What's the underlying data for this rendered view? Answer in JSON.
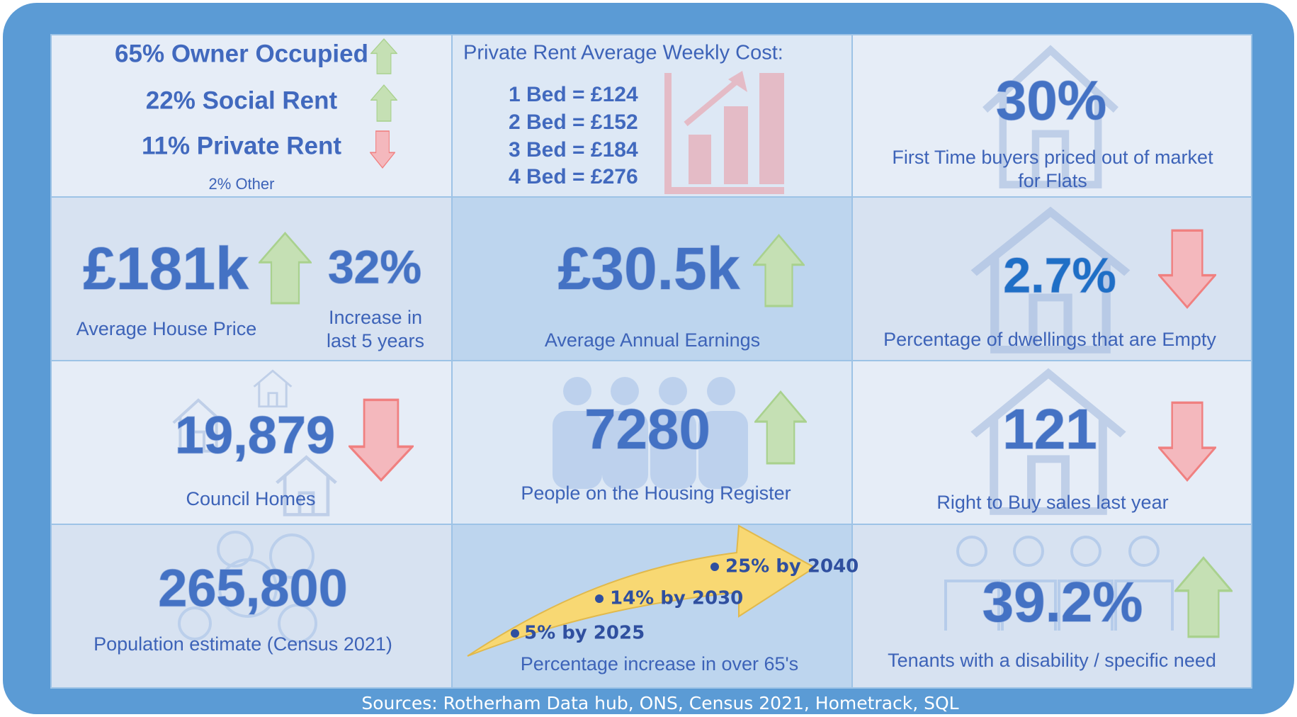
{
  "tenure": {
    "items": [
      "65% Owner Occupied",
      "22% Social Rent",
      "11% Private Rent"
    ],
    "other": "2% Other"
  },
  "rent": {
    "title": "Private Rent Average Weekly Cost:",
    "lines": [
      "1 Bed = £124",
      "2 Bed = £152",
      "3 Bed = £184",
      "4 Bed = £276"
    ]
  },
  "first_time_buyers": {
    "value": "30%",
    "caption": [
      "First Time buyers priced out of market",
      "for Flats"
    ]
  },
  "house_price": {
    "value": "£181k",
    "caption": "Average House Price",
    "increase": "32%",
    "increase_caption": [
      "Increase in",
      "last 5 years"
    ]
  },
  "earnings": {
    "value": "£30.5k",
    "caption": "Average Annual Earnings"
  },
  "empty_dwellings": {
    "value": "2.7%",
    "caption": "Percentage of dwellings that are Empty"
  },
  "council_homes": {
    "value": "19,879",
    "caption": "Council Homes"
  },
  "housing_register": {
    "value": "7280",
    "caption": "People on the Housing Register"
  },
  "right_to_buy": {
    "value": "121",
    "caption": "Right to Buy sales last year"
  },
  "population": {
    "value": "265,800",
    "caption": "Population estimate (Census 2021)"
  },
  "over_65": {
    "points": [
      "5% by 2025",
      "14% by 2030",
      "25% by 2040"
    ],
    "caption": "Percentage increase in over 65's"
  },
  "disability": {
    "value": "39.2%",
    "caption": "Tenants with a disability / specific need"
  },
  "footer": {
    "sources": "Sources: Rotherham Data hub, ONS, Census 2021, Hometrack, SQL"
  }
}
